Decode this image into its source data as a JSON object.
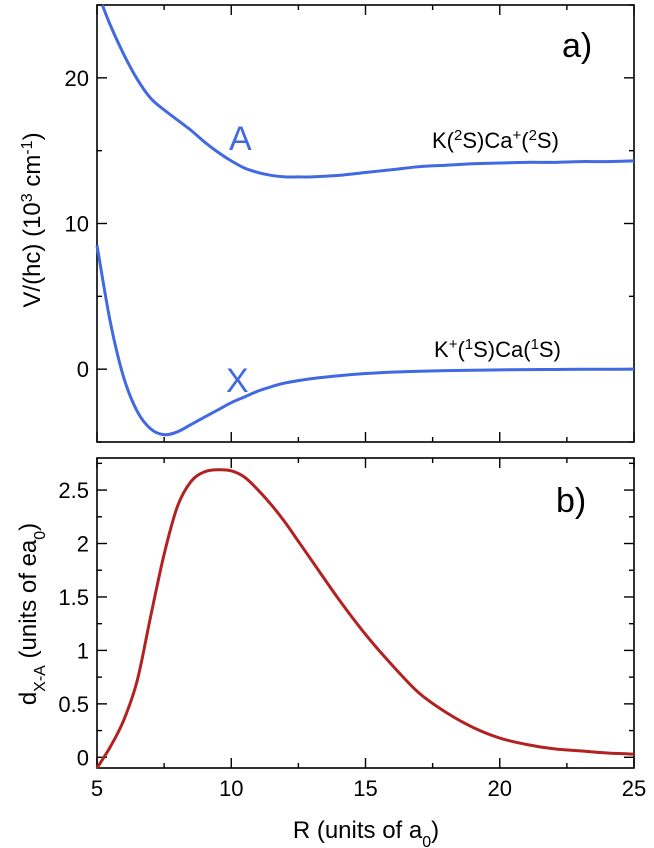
{
  "chart_data": [
    {
      "type": "line",
      "panel_label": "a)",
      "ylabel": "V/(hc) (10³ cm⁻¹)",
      "xlim": [
        5,
        25
      ],
      "ylim": [
        -5,
        25
      ],
      "yticks": [
        0,
        10,
        20
      ],
      "color": "#4169e1",
      "series": [
        {
          "label": "A",
          "asymptote": "K(²S)Ca⁺(²S)",
          "x": [
            5.2,
            5.5,
            6,
            6.5,
            7,
            7.5,
            8,
            8.5,
            9,
            9.5,
            10,
            10.5,
            11,
            11.5,
            12,
            12.5,
            13,
            14,
            15,
            16,
            17,
            18,
            19,
            20,
            21,
            22,
            23,
            24,
            25
          ],
          "y": [
            25,
            23.6,
            21.6,
            19.9,
            18.6,
            17.8,
            17.1,
            16.4,
            15.6,
            14.9,
            14.3,
            13.8,
            13.5,
            13.3,
            13.2,
            13.2,
            13.2,
            13.3,
            13.5,
            13.7,
            13.9,
            14.0,
            14.1,
            14.15,
            14.2,
            14.2,
            14.25,
            14.25,
            14.3
          ]
        },
        {
          "label": "X",
          "asymptote": "K⁺(¹S)Ca(¹S)",
          "x": [
            5,
            5.5,
            6,
            6.5,
            7,
            7.5,
            8,
            8.5,
            9,
            9.5,
            10,
            10.5,
            11,
            11.5,
            12,
            13,
            14,
            15,
            16,
            17,
            18,
            19,
            20,
            21,
            22,
            23,
            24,
            25
          ],
          "y": [
            8.5,
            3.2,
            -0.6,
            -2.9,
            -4.1,
            -4.5,
            -4.3,
            -3.8,
            -3.3,
            -2.8,
            -2.3,
            -1.9,
            -1.5,
            -1.2,
            -0.95,
            -0.65,
            -0.45,
            -0.3,
            -0.2,
            -0.14,
            -0.1,
            -0.07,
            -0.05,
            -0.03,
            -0.02,
            -0.01,
            -0.005,
            0
          ]
        }
      ]
    },
    {
      "type": "line",
      "panel_label": "b)",
      "ylabel": "d X-A (units of ea 0)",
      "ylabel_parts": [
        "d",
        "X-A",
        " (units of ea",
        "0",
        ")"
      ],
      "xlabel": "R (units of a 0)",
      "xlabel_parts": [
        "R (units of a",
        "0",
        ")"
      ],
      "xlim": [
        5,
        25
      ],
      "ylim": [
        -0.1,
        2.8
      ],
      "xticks": [
        5,
        10,
        15,
        20,
        25
      ],
      "yticks": [
        0,
        0.5,
        1,
        1.5,
        2,
        2.5
      ],
      "yticklabels": [
        "0",
        "0.5",
        "1",
        "1.5",
        "2",
        "2.5"
      ],
      "color": "#b22222",
      "series": [
        {
          "x": [
            5,
            5.5,
            6,
            6.5,
            7,
            7.5,
            8,
            8.5,
            9,
            9.5,
            10,
            10.5,
            11,
            11.5,
            12,
            12.5,
            13,
            14,
            15,
            16,
            17,
            18,
            19,
            20,
            21,
            22,
            23,
            24,
            25
          ],
          "y": [
            -0.1,
            0.1,
            0.35,
            0.72,
            1.32,
            1.9,
            2.35,
            2.58,
            2.67,
            2.69,
            2.68,
            2.62,
            2.5,
            2.36,
            2.2,
            2.02,
            1.84,
            1.48,
            1.15,
            0.86,
            0.6,
            0.42,
            0.28,
            0.18,
            0.12,
            0.08,
            0.06,
            0.04,
            0.03
          ]
        }
      ]
    }
  ]
}
